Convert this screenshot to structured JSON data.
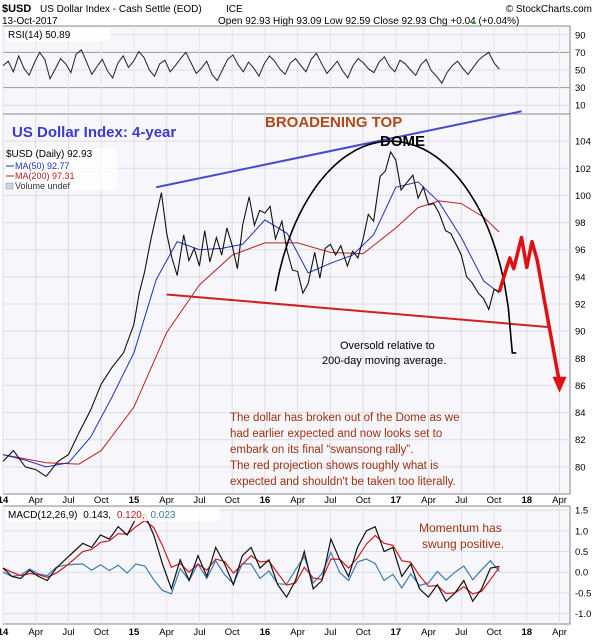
{
  "header": {
    "symbol": "$USD",
    "name": "US Dollar Index - Cash Settle (EOD)",
    "exchange": "ICE",
    "watermark": "© StockCharts.com",
    "date": "13-Oct-2017",
    "ohlc": "Open 92.93  High 93.09  Low 92.59  Close 92.93  Chg +0.04 (+0.04%)",
    "chg_arrow": "▲"
  },
  "rsi": {
    "label": "RSI(14) 50.89",
    "ticks": [
      "90",
      "70",
      "50",
      "30",
      "10"
    ],
    "levels": [
      70,
      30
    ],
    "range": [
      0,
      100
    ],
    "values": [
      55,
      60,
      48,
      66,
      52,
      44,
      58,
      70,
      62,
      40,
      51,
      63,
      57,
      47,
      68,
      73,
      59,
      45,
      54,
      62,
      49,
      41,
      58,
      66,
      53,
      60,
      71,
      64,
      50,
      43,
      57,
      61,
      48,
      55,
      63,
      70,
      58,
      46,
      52,
      60,
      45,
      38,
      50,
      62,
      67,
      56,
      48,
      59,
      52,
      43,
      57,
      66,
      60,
      51,
      45,
      58,
      63,
      55,
      48,
      62,
      69,
      57,
      46,
      53,
      60,
      49,
      41,
      55,
      63,
      58,
      51,
      47,
      59,
      65,
      54,
      48,
      61,
      57,
      50,
      44,
      56,
      62,
      49,
      43,
      35,
      47,
      55,
      60,
      52,
      45,
      53,
      61,
      66,
      70,
      58,
      51
    ]
  },
  "main": {
    "title": "US Dollar Index: 4-year",
    "legend_price": "$USD (Daily) 92.93",
    "legend_ma50": "MA(50) 92.77",
    "legend_ma200": "MA(200) 97.31",
    "legend_volume": "Volume undef",
    "yticks": [
      80,
      82,
      84,
      86,
      88,
      90,
      92,
      94,
      96,
      98,
      100,
      102,
      104
    ],
    "yrange": [
      78,
      106
    ],
    "xrange": [
      2014.0,
      2018.33
    ],
    "price": [
      [
        2014.0,
        80.4
      ],
      [
        2014.08,
        81.2
      ],
      [
        2014.17,
        80.0
      ],
      [
        2014.25,
        79.8
      ],
      [
        2014.33,
        79.3
      ],
      [
        2014.42,
        80.4
      ],
      [
        2014.5,
        80.9
      ],
      [
        2014.58,
        82.5
      ],
      [
        2014.67,
        84.2
      ],
      [
        2014.75,
        86.1
      ],
      [
        2014.83,
        87.3
      ],
      [
        2014.92,
        88.4
      ],
      [
        2015.0,
        90.5
      ],
      [
        2015.04,
        92.8
      ],
      [
        2015.08,
        94.3
      ],
      [
        2015.13,
        96.8
      ],
      [
        2015.17,
        98.5
      ],
      [
        2015.21,
        100.2
      ],
      [
        2015.25,
        97.2
      ],
      [
        2015.29,
        95.4
      ],
      [
        2015.33,
        94.1
      ],
      [
        2015.38,
        97.1
      ],
      [
        2015.42,
        95.2
      ],
      [
        2015.46,
        96.1
      ],
      [
        2015.5,
        94.8
      ],
      [
        2015.54,
        97.4
      ],
      [
        2015.58,
        95.1
      ],
      [
        2015.63,
        96.9
      ],
      [
        2015.67,
        95.6
      ],
      [
        2015.71,
        97.6
      ],
      [
        2015.75,
        96.3
      ],
      [
        2015.79,
        94.6
      ],
      [
        2015.83,
        97.8
      ],
      [
        2015.88,
        99.9
      ],
      [
        2015.92,
        97.8
      ],
      [
        2015.96,
        98.9
      ],
      [
        2016.0,
        98.7
      ],
      [
        2016.04,
        99.2
      ],
      [
        2016.08,
        96.8
      ],
      [
        2016.13,
        98.1
      ],
      [
        2016.17,
        95.9
      ],
      [
        2016.21,
        94.5
      ],
      [
        2016.25,
        94.4
      ],
      [
        2016.29,
        92.8
      ],
      [
        2016.33,
        93.5
      ],
      [
        2016.38,
        95.8
      ],
      [
        2016.42,
        93.9
      ],
      [
        2016.46,
        96.1
      ],
      [
        2016.5,
        96.4
      ],
      [
        2016.54,
        95.6
      ],
      [
        2016.58,
        96.3
      ],
      [
        2016.63,
        94.8
      ],
      [
        2016.67,
        95.9
      ],
      [
        2016.71,
        95.4
      ],
      [
        2016.75,
        96.8
      ],
      [
        2016.79,
        98.6
      ],
      [
        2016.83,
        98.1
      ],
      [
        2016.88,
        101.4
      ],
      [
        2016.92,
        101.8
      ],
      [
        2016.96,
        103.2
      ],
      [
        2017.0,
        102.6
      ],
      [
        2017.04,
        100.4
      ],
      [
        2017.08,
        100.9
      ],
      [
        2017.13,
        101.5
      ],
      [
        2017.17,
        99.8
      ],
      [
        2017.21,
        100.6
      ],
      [
        2017.25,
        99.3
      ],
      [
        2017.29,
        99.4
      ],
      [
        2017.33,
        98.7
      ],
      [
        2017.38,
        97.4
      ],
      [
        2017.42,
        97.2
      ],
      [
        2017.46,
        96.4
      ],
      [
        2017.5,
        95.6
      ],
      [
        2017.54,
        94.0
      ],
      [
        2017.58,
        93.6
      ],
      [
        2017.63,
        92.8
      ],
      [
        2017.67,
        92.4
      ],
      [
        2017.71,
        91.6
      ],
      [
        2017.75,
        93.1
      ],
      [
        2017.79,
        92.9
      ]
    ],
    "ma50": [
      [
        2014.0,
        80.9
      ],
      [
        2014.17,
        80.5
      ],
      [
        2014.33,
        80.0
      ],
      [
        2014.5,
        80.3
      ],
      [
        2014.67,
        82.2
      ],
      [
        2014.83,
        85.1
      ],
      [
        2015.0,
        88.4
      ],
      [
        2015.17,
        93.8
      ],
      [
        2015.33,
        96.6
      ],
      [
        2015.5,
        96.0
      ],
      [
        2015.67,
        96.1
      ],
      [
        2015.83,
        96.4
      ],
      [
        2016.0,
        98.2
      ],
      [
        2016.17,
        97.2
      ],
      [
        2016.33,
        94.3
      ],
      [
        2016.5,
        95.0
      ],
      [
        2016.67,
        95.6
      ],
      [
        2016.83,
        97.1
      ],
      [
        2017.0,
        100.6
      ],
      [
        2017.17,
        101.0
      ],
      [
        2017.33,
        99.5
      ],
      [
        2017.5,
        96.9
      ],
      [
        2017.67,
        93.7
      ],
      [
        2017.79,
        92.8
      ]
    ],
    "ma200": [
      [
        2014.0,
        80.9
      ],
      [
        2014.33,
        80.3
      ],
      [
        2014.58,
        80.2
      ],
      [
        2014.75,
        81.2
      ],
      [
        2015.0,
        84.4
      ],
      [
        2015.25,
        89.9
      ],
      [
        2015.5,
        93.4
      ],
      [
        2015.75,
        95.6
      ],
      [
        2016.0,
        96.5
      ],
      [
        2016.25,
        96.5
      ],
      [
        2016.5,
        95.8
      ],
      [
        2016.75,
        95.7
      ],
      [
        2017.0,
        97.6
      ],
      [
        2017.17,
        99.1
      ],
      [
        2017.33,
        99.6
      ],
      [
        2017.5,
        99.4
      ],
      [
        2017.67,
        98.4
      ],
      [
        2017.79,
        97.3
      ]
    ],
    "projection": [
      [
        2017.79,
        92.9
      ],
      [
        2017.87,
        95.4
      ],
      [
        2017.9,
        94.6
      ],
      [
        2017.96,
        96.9
      ],
      [
        2018.0,
        94.7
      ],
      [
        2018.04,
        96.6
      ],
      [
        2018.08,
        95.2
      ],
      [
        2018.13,
        92.5
      ],
      [
        2018.17,
        90.4
      ],
      [
        2018.25,
        86.2
      ]
    ],
    "upper_line": [
      [
        2015.17,
        100.6
      ],
      [
        2017.96,
        106.2
      ]
    ],
    "lower_line": [
      [
        2015.25,
        92.7
      ],
      [
        2018.17,
        90.3
      ]
    ],
    "dome": {
      "x0": 2016.08,
      "x1": 2017.92,
      "peak_x": 2016.96,
      "peak_y": 104.0,
      "base_y": 88.4
    },
    "annotations": {
      "broadening": "BROADENING TOP",
      "dome": "DOME",
      "oversold_1": "Oversold relative to",
      "oversold_2": "200-day moving average.",
      "text_1": "The dollar has broken out of the Dome as we",
      "text_2": "had earlier expected and now looks set to",
      "text_3": "embark on its final “swansong rally”.",
      "text_4": "The red projection shows roughly what is",
      "text_5": "expected and shouldn't be taken too literally."
    }
  },
  "xaxis": {
    "labels": [
      {
        "t": "14",
        "x": 2014.0,
        "bold": true
      },
      {
        "t": "Apr",
        "x": 2014.25,
        "bold": false
      },
      {
        "t": "Jul",
        "x": 2014.5,
        "bold": false
      },
      {
        "t": "Oct",
        "x": 2014.75,
        "bold": false
      },
      {
        "t": "15",
        "x": 2015.0,
        "bold": true
      },
      {
        "t": "Apr",
        "x": 2015.25,
        "bold": false
      },
      {
        "t": "Jul",
        "x": 2015.5,
        "bold": false
      },
      {
        "t": "Oct",
        "x": 2015.75,
        "bold": false
      },
      {
        "t": "16",
        "x": 2016.0,
        "bold": true
      },
      {
        "t": "Apr",
        "x": 2016.25,
        "bold": false
      },
      {
        "t": "Jul",
        "x": 2016.5,
        "bold": false
      },
      {
        "t": "Oct",
        "x": 2016.75,
        "bold": false
      },
      {
        "t": "17",
        "x": 2017.0,
        "bold": true
      },
      {
        "t": "Apr",
        "x": 2017.25,
        "bold": false
      },
      {
        "t": "Jul",
        "x": 2017.5,
        "bold": false
      },
      {
        "t": "Oct",
        "x": 2017.75,
        "bold": false
      },
      {
        "t": "18",
        "x": 2018.0,
        "bold": true
      },
      {
        "t": "Apr",
        "x": 2018.25,
        "bold": false
      }
    ]
  },
  "macd": {
    "label_prefix": "MACD(12,26,9)",
    "label_macd": "0.143,",
    "label_signal": "0.120,",
    "label_hist": "0.023",
    "annotation_1": "Momentum has",
    "annotation_2": "swung positive.",
    "yticks": [
      1.5,
      1.0,
      0.5,
      0.0,
      -0.5,
      -1.0
    ],
    "yrange": [
      -1.25,
      1.6
    ],
    "macd_line": [
      0.1,
      -0.1,
      -0.15,
      0.05,
      -0.1,
      -0.2,
      0.1,
      0.3,
      0.5,
      0.7,
      0.6,
      0.9,
      0.8,
      1.1,
      0.9,
      1.3,
      1.4,
      0.9,
      0.2,
      -0.4,
      0.3,
      -0.2,
      0.4,
      -0.1,
      0.6,
      0.2,
      -0.3,
      0.4,
      0.6,
      0.1,
      0.3,
      -0.3,
      -0.6,
      -0.2,
      0.5,
      -0.4,
      -0.2,
      0.8,
      0.3,
      -0.1,
      0.6,
      1.0,
      1.1,
      0.5,
      0.6,
      -0.1,
      0.2,
      -0.4,
      -0.6,
      -0.3,
      -0.7,
      -0.5,
      -0.2,
      -0.7,
      -0.4,
      0.1,
      0.14
    ],
    "signal_line": [
      0.1,
      0.0,
      -0.08,
      -0.03,
      -0.06,
      -0.12,
      -0.02,
      0.13,
      0.31,
      0.5,
      0.55,
      0.72,
      0.76,
      0.93,
      0.92,
      1.1,
      1.25,
      1.08,
      0.64,
      0.12,
      0.21,
      0.0,
      0.2,
      0.05,
      0.32,
      0.26,
      -0.02,
      0.19,
      0.4,
      0.25,
      0.27,
      -0.02,
      -0.31,
      -0.26,
      0.12,
      -0.14,
      -0.17,
      0.32,
      0.31,
      0.1,
      0.35,
      0.68,
      0.89,
      0.7,
      0.65,
      0.28,
      0.24,
      -0.08,
      -0.34,
      -0.32,
      -0.51,
      -0.5,
      -0.35,
      -0.52,
      -0.46,
      -0.18,
      0.12
    ]
  }
}
